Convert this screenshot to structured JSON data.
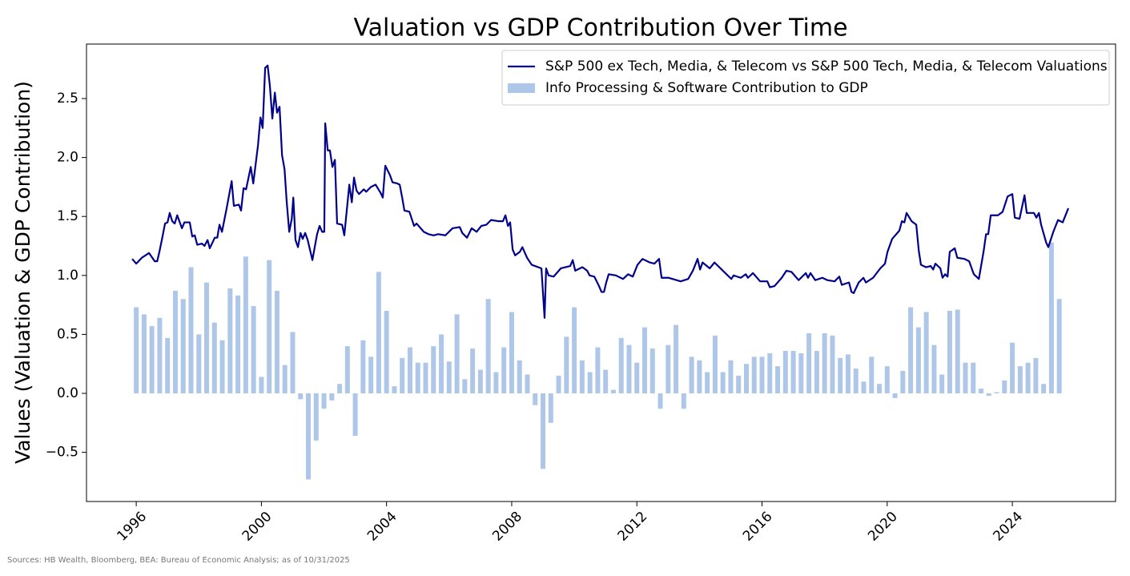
{
  "chart_data": {
    "type": "combo",
    "title": "Valuation vs GDP Contribution Over Time",
    "y_label": "Values (Valuation & GDP Contribution)",
    "source": "Sources: HB Wealth, Bloomberg, BEA: Bureau of Economic Analysis; as of 10/31/2025",
    "xlim": [
      1994.41,
      2027.3
    ],
    "xticks": [
      1996,
      2000,
      2004,
      2008,
      2012,
      2016,
      2020,
      2024
    ],
    "ylim": [
      -0.917,
      2.962
    ],
    "yticks": [
      {
        "value": -0.5,
        "label": "−0.5"
      },
      {
        "value": 0,
        "label": "0.0"
      },
      0.5,
      {
        "value": 1,
        "label": "1.0"
      },
      1.5,
      {
        "value": 2,
        "label": "2.0"
      },
      2.5
    ],
    "grid": false,
    "legend": "upper-right",
    "series": [
      {
        "name": "S&P 500 ex Tech, Media, & Telecom vs S&P 500 Tech, Media, & Telecom Valuations",
        "type": "line",
        "color": "#00008b",
        "x": [
          1995.87,
          1996.0,
          1996.18,
          1996.41,
          1996.59,
          1996.67,
          1996.74,
          1996.84,
          1996.92,
          1997.0,
          1997.07,
          1997.15,
          1997.23,
          1997.31,
          1997.46,
          1997.54,
          1997.71,
          1997.79,
          1997.87,
          1997.95,
          1998.1,
          1998.18,
          1998.28,
          1998.35,
          1998.51,
          1998.59,
          1998.66,
          1998.74,
          1998.89,
          1999.05,
          1999.12,
          1999.28,
          1999.35,
          1999.43,
          1999.51,
          1999.66,
          1999.74,
          1999.89,
          1999.97,
          2000.04,
          2000.12,
          2000.2,
          2000.27,
          2000.35,
          2000.43,
          2000.5,
          2000.58,
          2000.66,
          2000.74,
          2000.81,
          2000.89,
          2000.97,
          2001.02,
          2001.09,
          2001.17,
          2001.25,
          2001.32,
          2001.4,
          2001.48,
          2001.63,
          2001.78,
          2001.86,
          2001.94,
          2002.01,
          2002.04,
          2002.12,
          2002.19,
          2002.27,
          2002.35,
          2002.42,
          2002.58,
          2002.65,
          2002.81,
          2002.89,
          2002.96,
          2003.04,
          2003.12,
          2003.27,
          2003.35,
          2003.5,
          2003.65,
          2003.81,
          2003.88,
          2003.96,
          2004.11,
          2004.19,
          2004.34,
          2004.42,
          2004.5,
          2004.57,
          2004.73,
          2004.88,
          2004.96,
          2005.19,
          2005.34,
          2005.5,
          2005.65,
          2005.88,
          2006.11,
          2006.34,
          2006.42,
          2006.57,
          2006.72,
          2006.88,
          2007.03,
          2007.19,
          2007.34,
          2007.57,
          2007.72,
          2007.8,
          2007.88,
          2007.95,
          2008.03,
          2008.11,
          2008.26,
          2008.34,
          2008.49,
          2008.64,
          2008.95,
          2009.0,
          2009.05,
          2009.1,
          2009.18,
          2009.34,
          2009.57,
          2009.87,
          2009.95,
          2010.03,
          2010.26,
          2010.41,
          2010.49,
          2010.64,
          2010.79,
          2010.87,
          2010.95,
          2011.02,
          2011.1,
          2011.33,
          2011.56,
          2011.72,
          2011.87,
          2012.02,
          2012.18,
          2012.41,
          2012.56,
          2012.71,
          2012.79,
          2013.02,
          2013.4,
          2013.64,
          2013.79,
          2013.94,
          2014.02,
          2014.1,
          2014.33,
          2014.48,
          2014.71,
          2015.02,
          2015.09,
          2015.32,
          2015.48,
          2015.55,
          2015.71,
          2015.94,
          2016.17,
          2016.25,
          2016.4,
          2016.63,
          2016.78,
          2016.94,
          2017.17,
          2017.4,
          2017.47,
          2017.55,
          2017.7,
          2017.93,
          2018.09,
          2018.32,
          2018.47,
          2018.55,
          2018.78,
          2018.86,
          2018.93,
          2019.09,
          2019.24,
          2019.32,
          2019.55,
          2019.78,
          2019.93,
          2020.01,
          2020.16,
          2020.39,
          2020.47,
          2020.55,
          2020.62,
          2020.78,
          2020.93,
          2021.01,
          2021.08,
          2021.24,
          2021.39,
          2021.47,
          2021.54,
          2021.7,
          2021.77,
          2021.85,
          2021.93,
          2022.0,
          2022.16,
          2022.24,
          2022.47,
          2022.62,
          2022.77,
          2022.93,
          2023.08,
          2023.16,
          2023.23,
          2023.31,
          2023.54,
          2023.69,
          2023.85,
          2024.0,
          2024.08,
          2024.23,
          2024.39,
          2024.46,
          2024.69,
          2024.77,
          2024.85,
          2024.92,
          2025.08,
          2025.15,
          2025.31,
          2025.46,
          2025.61,
          2025.79
        ],
        "values": [
          1.14,
          1.1,
          1.15,
          1.19,
          1.12,
          1.12,
          1.2,
          1.33,
          1.44,
          1.45,
          1.53,
          1.46,
          1.44,
          1.51,
          1.4,
          1.45,
          1.45,
          1.33,
          1.34,
          1.26,
          1.27,
          1.25,
          1.3,
          1.23,
          1.32,
          1.32,
          1.43,
          1.37,
          1.57,
          1.8,
          1.59,
          1.6,
          1.55,
          1.74,
          1.73,
          1.92,
          1.78,
          2.1,
          2.34,
          2.25,
          2.76,
          2.78,
          2.61,
          2.33,
          2.55,
          2.38,
          2.43,
          2.02,
          1.9,
          1.62,
          1.37,
          1.48,
          1.66,
          1.3,
          1.24,
          1.36,
          1.31,
          1.36,
          1.3,
          1.13,
          1.35,
          1.42,
          1.37,
          1.37,
          2.29,
          2.06,
          2.06,
          1.92,
          1.98,
          1.44,
          1.43,
          1.34,
          1.77,
          1.62,
          1.83,
          1.72,
          1.69,
          1.73,
          1.71,
          1.75,
          1.77,
          1.7,
          1.66,
          1.93,
          1.85,
          1.79,
          1.78,
          1.77,
          1.66,
          1.55,
          1.54,
          1.42,
          1.44,
          1.37,
          1.35,
          1.34,
          1.35,
          1.34,
          1.4,
          1.41,
          1.36,
          1.32,
          1.4,
          1.37,
          1.42,
          1.43,
          1.47,
          1.46,
          1.46,
          1.51,
          1.42,
          1.45,
          1.22,
          1.17,
          1.2,
          1.24,
          1.15,
          1.09,
          1.06,
          0.85,
          0.64,
          1.06,
          1.0,
          0.99,
          1.06,
          1.08,
          1.13,
          1.04,
          1.07,
          1.04,
          1.0,
          0.99,
          0.91,
          0.86,
          0.86,
          0.94,
          1.01,
          1.0,
          0.97,
          1.01,
          0.99,
          1.09,
          1.14,
          1.11,
          1.1,
          1.14,
          0.98,
          0.98,
          0.95,
          0.97,
          1.04,
          1.14,
          1.05,
          1.11,
          1.06,
          1.11,
          1.05,
          0.97,
          1.0,
          0.98,
          1.01,
          0.98,
          1.02,
          0.95,
          0.95,
          0.9,
          0.91,
          0.98,
          1.04,
          1.03,
          0.96,
          1.02,
          0.98,
          1.02,
          0.96,
          0.98,
          0.96,
          0.95,
          0.99,
          0.92,
          0.94,
          0.86,
          0.85,
          0.94,
          0.98,
          0.94,
          0.98,
          1.06,
          1.1,
          1.2,
          1.31,
          1.38,
          1.46,
          1.45,
          1.53,
          1.46,
          1.43,
          1.21,
          1.09,
          1.07,
          1.08,
          1.05,
          1.1,
          1.06,
          0.98,
          1.01,
          0.99,
          1.2,
          1.23,
          1.15,
          1.14,
          1.12,
          1.01,
          0.97,
          1.2,
          1.35,
          1.35,
          1.51,
          1.51,
          1.54,
          1.67,
          1.69,
          1.49,
          1.48,
          1.68,
          1.53,
          1.53,
          1.49,
          1.53,
          1.43,
          1.28,
          1.24,
          1.37,
          1.47,
          1.45,
          1.57
        ]
      },
      {
        "name": "Info Processing & Software Contribution to GDP",
        "type": "bar",
        "color": "#aec7e8",
        "x": [
          1996,
          1996.25,
          1996.5,
          1996.75,
          1997,
          1997.25,
          1997.5,
          1997.75,
          1998,
          1998.25,
          1998.5,
          1998.75,
          1999,
          1999.25,
          1999.5,
          1999.75,
          2000,
          2000.25,
          2000.5,
          2000.75,
          2001,
          2001.25,
          2001.5,
          2001.75,
          2002,
          2002.25,
          2002.5,
          2002.75,
          2003,
          2003.25,
          2003.5,
          2003.75,
          2004,
          2004.25,
          2004.5,
          2004.75,
          2005,
          2005.25,
          2005.5,
          2005.75,
          2006,
          2006.25,
          2006.5,
          2006.75,
          2007,
          2007.25,
          2007.5,
          2007.75,
          2008,
          2008.25,
          2008.5,
          2008.75,
          2009,
          2009.25,
          2009.5,
          2009.75,
          2010,
          2010.25,
          2010.5,
          2010.75,
          2011,
          2011.25,
          2011.5,
          2011.75,
          2012,
          2012.25,
          2012.5,
          2012.75,
          2013,
          2013.25,
          2013.5,
          2013.75,
          2014,
          2014.25,
          2014.5,
          2014.75,
          2015,
          2015.25,
          2015.5,
          2015.75,
          2016,
          2016.25,
          2016.5,
          2016.75,
          2017,
          2017.25,
          2017.5,
          2017.75,
          2018,
          2018.25,
          2018.5,
          2018.75,
          2019,
          2019.25,
          2019.5,
          2019.75,
          2020,
          2020.25,
          2020.5,
          2020.75,
          2021,
          2021.25,
          2021.5,
          2021.75,
          2022,
          2022.25,
          2022.5,
          2022.75,
          2023,
          2023.25,
          2023.5,
          2023.75,
          2024,
          2024.25,
          2024.5,
          2024.75,
          2025,
          2025.25,
          2025.5
        ],
        "values": [
          0.73,
          0.67,
          0.57,
          0.64,
          0.47,
          0.87,
          0.8,
          1.07,
          0.5,
          0.94,
          0.6,
          0.45,
          0.89,
          0.83,
          1.16,
          0.74,
          0.14,
          1.13,
          0.87,
          0.24,
          0.52,
          -0.05,
          -0.73,
          -0.4,
          -0.13,
          -0.06,
          0.08,
          0.4,
          -0.36,
          0.45,
          0.31,
          1.03,
          0.7,
          0.06,
          0.3,
          0.39,
          0.26,
          0.26,
          0.4,
          0.5,
          0.27,
          0.67,
          0.12,
          0.38,
          0.2,
          0.8,
          0.18,
          0.39,
          0.69,
          0.28,
          0.16,
          -0.1,
          -0.64,
          -0.25,
          0.15,
          0.48,
          0.73,
          0.28,
          0.18,
          0.39,
          0.2,
          0.03,
          0.47,
          0.41,
          0.26,
          0.56,
          0.38,
          -0.13,
          0.41,
          0.58,
          -0.13,
          0.31,
          0.28,
          0.18,
          0.49,
          0.18,
          0.28,
          0.15,
          0.25,
          0.31,
          0.31,
          0.34,
          0.23,
          0.36,
          0.36,
          0.34,
          0.51,
          0.36,
          0.51,
          0.49,
          0.3,
          0.33,
          0.21,
          0.1,
          0.31,
          0.08,
          0.23,
          -0.04,
          0.19,
          0.73,
          0.56,
          0.69,
          0.41,
          0.16,
          0.7,
          0.71,
          0.26,
          0.26,
          0.04,
          -0.02,
          0.01,
          0.11,
          0.43,
          0.23,
          0.26,
          0.3,
          0.08,
          1.28,
          0.8
        ]
      }
    ]
  }
}
